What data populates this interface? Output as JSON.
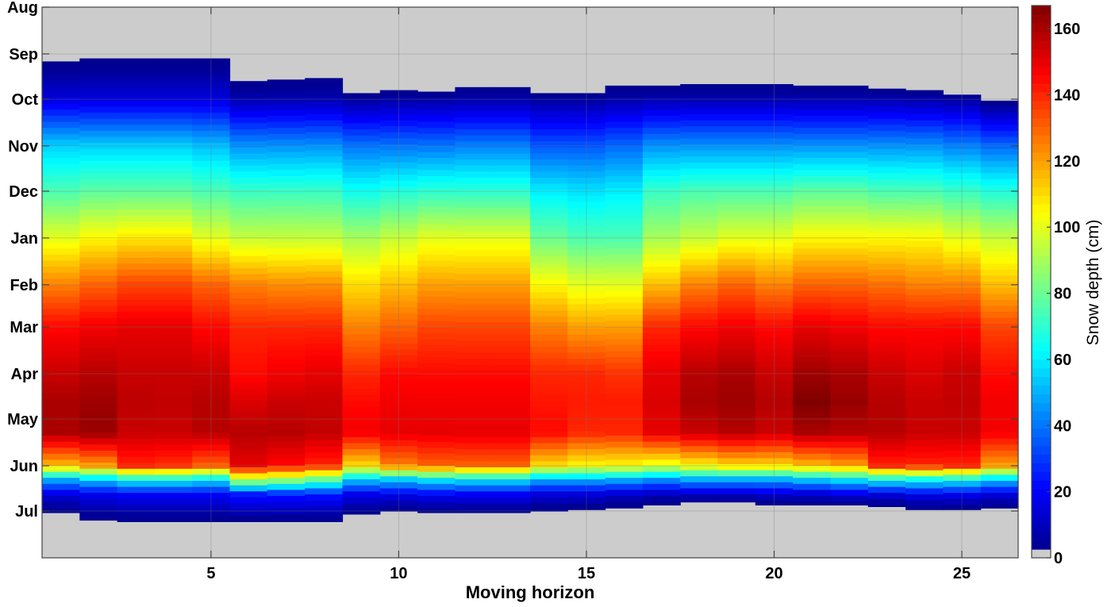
{
  "chart_data": {
    "type": "heatmap",
    "title": "",
    "xlabel": "Moving horizon",
    "ylabel": "",
    "colorbar_label": "Snow depth (cm)",
    "colormap": "jet",
    "no_data_color": "#cccccc",
    "xlim": [
      0.5,
      26.5
    ],
    "ylim": [
      "Aug 01",
      "Aug 01 (next year)"
    ],
    "clim": [
      0,
      167
    ],
    "grid": true,
    "x_ticks": [
      "5",
      "10",
      "15",
      "20",
      "25"
    ],
    "y_ticks": [
      "Aug",
      "Sep",
      "Oct",
      "Nov",
      "Dec",
      "Jan",
      "Feb",
      "Mar",
      "Apr",
      "May",
      "Jun",
      "Jul"
    ],
    "colorbar_ticks": [
      "0",
      "20",
      "40",
      "60",
      "80",
      "100",
      "120",
      "140",
      "160"
    ],
    "x": [
      1,
      2,
      3,
      4,
      5,
      6,
      7,
      8,
      9,
      10,
      11,
      12,
      13,
      14,
      15,
      16,
      17,
      18,
      19,
      20,
      21,
      22,
      23,
      24,
      25,
      26
    ],
    "snow_start": [
      "Sep 06",
      "Sep 04",
      "Sep 04",
      "Sep 04",
      "Sep 04",
      "Sep 19",
      "Sep 18",
      "Sep 17",
      "Sep 27",
      "Sep 25",
      "Sep 26",
      "Sep 23",
      "Sep 23",
      "Sep 27",
      "Sep 27",
      "Sep 22",
      "Sep 22",
      "Sep 21",
      "Sep 21",
      "Sep 21",
      "Sep 22",
      "Sep 22",
      "Sep 24",
      "Sep 25",
      "Sep 28",
      "Oct 02"
    ],
    "snow_end": [
      "Jul 02",
      "Jul 07",
      "Jul 08",
      "Jul 08",
      "Jul 08",
      "Jul 08",
      "Jul 08",
      "Jul 08",
      "Jul 03",
      "Jul 01",
      "Jul 02",
      "Jul 02",
      "Jul 02",
      "Jul 01",
      "Jun 30",
      "Jun 29",
      "Jun 27",
      "Jun 25",
      "Jun 25",
      "Jun 27",
      "Jun 27",
      "Jun 27",
      "Jun 28",
      "Jun 30",
      "Jun 30",
      "Jun 29"
    ],
    "sample_dates": [
      "Oct 01",
      "Nov 01",
      "Dec 01",
      "Jan 01",
      "Feb 01",
      "Mar 01",
      "Apr 01",
      "Apr 20",
      "May 10",
      "Jun 01",
      "Jun 10",
      "Jun 20"
    ],
    "depth_cm": [
      [
        15,
        55,
        75,
        100,
        125,
        145,
        155,
        160,
        160,
        115,
        50,
        15
      ],
      [
        15,
        55,
        78,
        105,
        130,
        148,
        158,
        162,
        163,
        120,
        55,
        18
      ],
      [
        15,
        55,
        78,
        108,
        135,
        150,
        155,
        157,
        155,
        140,
        65,
        20
      ],
      [
        15,
        55,
        78,
        108,
        135,
        150,
        155,
        156,
        155,
        138,
        65,
        20
      ],
      [
        15,
        52,
        75,
        100,
        130,
        145,
        155,
        158,
        158,
        130,
        60,
        20
      ],
      [
        8,
        45,
        72,
        95,
        125,
        140,
        145,
        152,
        158,
        150,
        95,
        25
      ],
      [
        8,
        45,
        72,
        95,
        123,
        140,
        148,
        155,
        158,
        145,
        90,
        25
      ],
      [
        8,
        45,
        72,
        95,
        123,
        140,
        150,
        155,
        156,
        140,
        80,
        25
      ],
      [
        5,
        40,
        65,
        90,
        110,
        125,
        140,
        145,
        148,
        110,
        55,
        18
      ],
      [
        6,
        40,
        68,
        95,
        115,
        130,
        145,
        148,
        150,
        125,
        55,
        18
      ],
      [
        6,
        40,
        70,
        100,
        120,
        135,
        145,
        148,
        150,
        130,
        60,
        20
      ],
      [
        7,
        42,
        70,
        100,
        120,
        135,
        145,
        148,
        150,
        130,
        60,
        20
      ],
      [
        7,
        42,
        70,
        100,
        120,
        135,
        145,
        148,
        150,
        130,
        60,
        20
      ],
      [
        5,
        35,
        60,
        80,
        105,
        125,
        140,
        143,
        145,
        110,
        50,
        15
      ],
      [
        5,
        35,
        58,
        75,
        100,
        120,
        140,
        142,
        140,
        105,
        50,
        15
      ],
      [
        7,
        38,
        60,
        75,
        100,
        120,
        138,
        142,
        140,
        105,
        50,
        12
      ],
      [
        8,
        45,
        72,
        90,
        115,
        140,
        150,
        152,
        150,
        100,
        45,
        10
      ],
      [
        8,
        45,
        75,
        95,
        125,
        145,
        158,
        160,
        155,
        105,
        50,
        10
      ],
      [
        8,
        45,
        75,
        100,
        130,
        148,
        160,
        162,
        158,
        110,
        50,
        10
      ],
      [
        8,
        45,
        75,
        100,
        125,
        145,
        155,
        158,
        155,
        110,
        50,
        12
      ],
      [
        8,
        45,
        78,
        105,
        130,
        150,
        162,
        167,
        160,
        115,
        55,
        12
      ],
      [
        8,
        45,
        78,
        105,
        130,
        148,
        160,
        163,
        158,
        120,
        60,
        15
      ],
      [
        8,
        45,
        75,
        105,
        128,
        145,
        155,
        158,
        158,
        140,
        65,
        15
      ],
      [
        7,
        45,
        75,
        105,
        125,
        145,
        152,
        155,
        155,
        140,
        65,
        18
      ],
      [
        6,
        42,
        72,
        100,
        125,
        145,
        155,
        156,
        155,
        140,
        65,
        18
      ],
      [
        3,
        38,
        68,
        95,
        115,
        135,
        145,
        148,
        148,
        120,
        55,
        15
      ]
    ]
  }
}
